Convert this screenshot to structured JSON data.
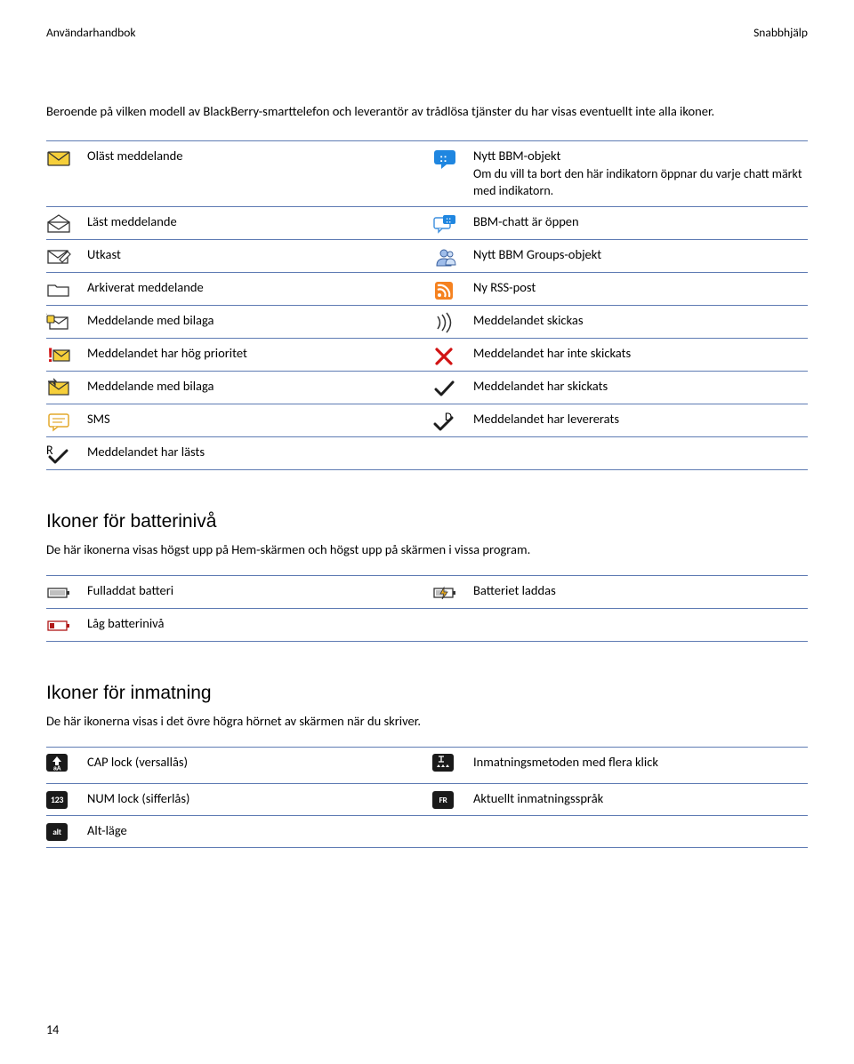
{
  "header": {
    "left": "Användarhandbok",
    "right": "Snabbhjälp"
  },
  "intro": "Beroende på vilken modell av BlackBerry-smarttelefon och leverantör av trådlösa tjänster du har visas eventuellt inte alla ikoner.",
  "page_number": "14",
  "colors": {
    "rule": "#5e7bb3",
    "envYellow": "#f6cf3a",
    "envBorder": "#333333",
    "bbmBlue": "#1f86e0",
    "chatBlue": "#3b8ede",
    "rss": "#f58220",
    "redX": "#d11313",
    "checkDark": "#1d1d1d",
    "batteryRed": "#b01717",
    "keyDark": "#1a1a1a"
  },
  "msgRows": [
    {
      "iconL": "unread-envelope",
      "labelL": "Oläst meddelande",
      "iconR": "bbm-speech",
      "labelR": "Nytt BBM-objekt",
      "note": "Om du vill ta bort den här indikatorn öppnar du varje chatt märkt med indikatorn."
    },
    {
      "iconL": "read-envelope",
      "labelL": "Läst meddelande",
      "iconR": "bbm-chat-open",
      "labelR": "BBM-chatt är öppen"
    },
    {
      "iconL": "draft-envelope",
      "labelL": "Utkast",
      "iconR": "bbm-group",
      "labelR": "Nytt BBM Groups-objekt"
    },
    {
      "iconL": "folder-outline",
      "labelL": "Arkiverat meddelande",
      "iconR": "rss-feed",
      "labelR": "Ny RSS-post"
    },
    {
      "iconL": "attachment-in",
      "labelL": "Meddelande med bilaga",
      "iconR": "sending-wave",
      "labelR": "Meddelandet skickas"
    },
    {
      "iconL": "priority-envelope",
      "labelL": "Meddelandet har hög prioritet",
      "iconR": "x-red",
      "labelR": "Meddelandet har inte skickats"
    },
    {
      "iconL": "attachment-out",
      "labelL": "Meddelande med bilaga",
      "iconR": "check-plain",
      "labelR": "Meddelandet har skickats"
    },
    {
      "iconL": "sms-bubble",
      "labelL": "SMS",
      "iconR": "check-d",
      "labelR": "Meddelandet har levererats"
    },
    {
      "iconL": "check-r",
      "labelL": "Meddelandet har lästs",
      "iconR": "",
      "labelR": ""
    }
  ],
  "battery": {
    "heading": "Ikoner för batterinivå",
    "sub": "De här ikonerna visas högst upp på Hem-skärmen och högst upp på skärmen i vissa program.",
    "rows": [
      {
        "iconL": "battery-full",
        "labelL": "Fulladdat batteri",
        "iconR": "battery-charging",
        "labelR": "Batteriet laddas"
      },
      {
        "iconL": "battery-low",
        "labelL": "Låg batterinivå",
        "iconR": "",
        "labelR": ""
      }
    ]
  },
  "input": {
    "heading": "Ikoner för inmatning",
    "sub": "De här ikonerna visas i det övre högra hörnet av skärmen när du skriver.",
    "rows": [
      {
        "iconL": "key-caps",
        "labelL": "CAP lock (versallås)",
        "iconR": "key-multitap",
        "labelR": "Inmatningsmetoden med flera klick"
      },
      {
        "iconL": "key-num",
        "labelL": "NUM lock (sifferlås)",
        "iconR": "key-lang",
        "labelR": "Aktuellt inmatningsspråk"
      },
      {
        "iconL": "key-alt",
        "labelL": "Alt-läge",
        "iconR": "",
        "labelR": ""
      }
    ]
  }
}
